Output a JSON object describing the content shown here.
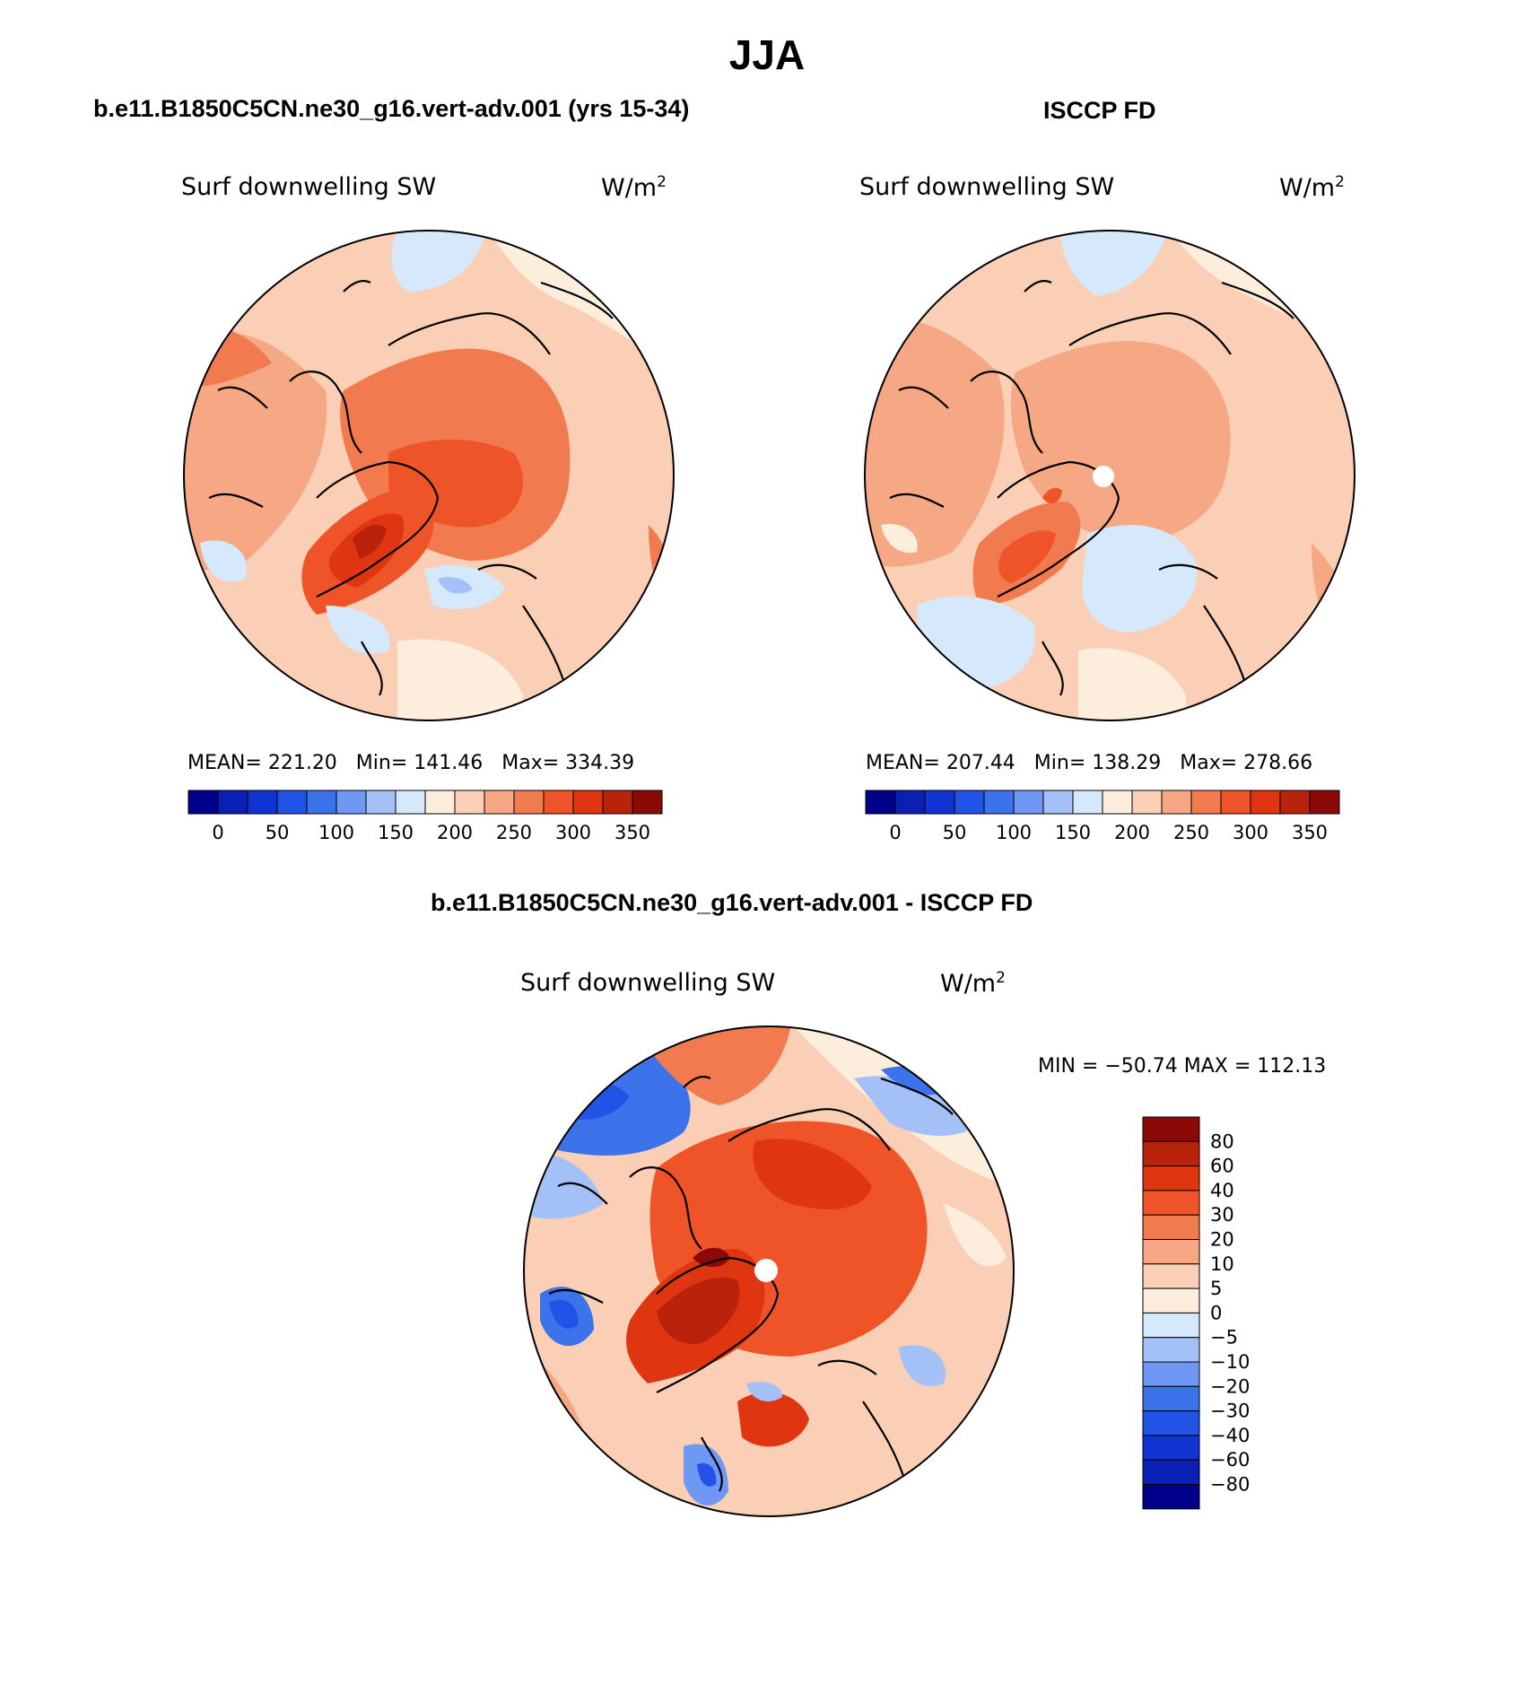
{
  "title": "JJA",
  "panels": [
    {
      "heading": "b.e11.B1850C5CN.ne30_g16.vert-adv.001 (yrs 15-34)",
      "variable": "Surf downwelling SW",
      "units": "W/m",
      "units_exp": "2",
      "stats": {
        "mean_label": "MEAN=",
        "mean": "221.20",
        "min_label": "Min=",
        "min": "141.46",
        "max_label": "Max=",
        "max": "334.39"
      },
      "pole_missing": false
    },
    {
      "heading": "ISCCP FD",
      "variable": "Surf downwelling SW",
      "units": "W/m",
      "units_exp": "2",
      "stats": {
        "mean_label": "MEAN=",
        "mean": "207.44",
        "min_label": "Min=",
        "min": "138.29",
        "max_label": "Max=",
        "max": "278.66"
      },
      "pole_missing": true
    },
    {
      "heading": "b.e11.B1850C5CN.ne30_g16.vert-adv.001 - ISCCP FD",
      "variable": "Surf downwelling SW",
      "units": "W/m",
      "units_exp": "2",
      "stats_text": "MIN = −50.74 MAX = 112.13",
      "pole_missing": true
    }
  ],
  "colorbar_abs": {
    "colors": [
      "#00008b",
      "#0a1fb4",
      "#1034d2",
      "#2154e6",
      "#3c73eb",
      "#6e98f3",
      "#a3c0f7",
      "#d6e8fb",
      "#fdeddd",
      "#fbcfb5",
      "#f6a885",
      "#f27a4f",
      "#ee5428",
      "#df3510",
      "#b9230b",
      "#8b0a08"
    ],
    "labels": [
      "0",
      "50",
      "100",
      "150",
      "200",
      "250",
      "300",
      "350"
    ]
  },
  "colorbar_diff": {
    "colors": [
      "#8b0a08",
      "#b9230b",
      "#df3510",
      "#ee5428",
      "#f27a4f",
      "#f6a885",
      "#fbcfb5",
      "#fdeddd",
      "#d6e8fb",
      "#a3c0f7",
      "#6e98f3",
      "#3c73eb",
      "#2154e6",
      "#1034d2",
      "#0a1fb4",
      "#00008b"
    ],
    "labels": [
      "80",
      "60",
      "40",
      "30",
      "20",
      "10",
      "5",
      "0",
      "−5",
      "−10",
      "−20",
      "−30",
      "−40",
      "−60",
      "−80"
    ]
  },
  "map_colors": {
    "pale_blue": "#d6e8fb",
    "light_blue": "#a3c0f7",
    "mid_blue": "#6e98f3",
    "blue": "#3c73eb",
    "strong_blue": "#2154e6",
    "cream": "#fdeddd",
    "peach": "#fbcfb5",
    "salmon": "#f6a885",
    "orange": "#f27a4f",
    "orange_red": "#ee5428",
    "red": "#df3510",
    "dark_red": "#b9230b"
  }
}
